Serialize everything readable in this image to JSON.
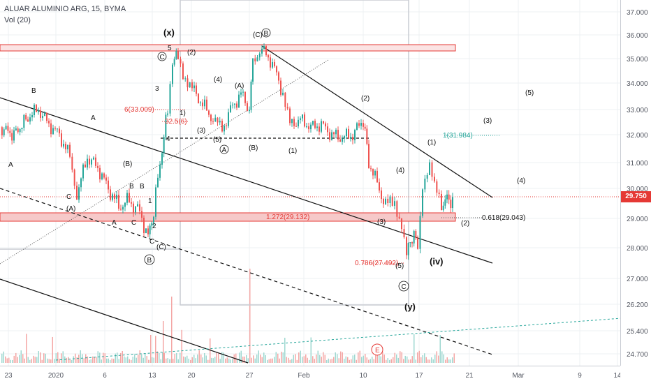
{
  "header": {
    "symbol_line": "ALUAR ALUMINIO ARG, 15, BYMA",
    "volume_line": "Vol (20)"
  },
  "price_axis": {
    "ticks": [
      "37.000",
      "36.000",
      "35.000",
      "34.000",
      "33.000",
      "32.000",
      "31.000",
      "30.000",
      "29.000",
      "28.000",
      "27.000",
      "26.200",
      "25.400",
      "24.700"
    ],
    "last_price": "29.750"
  },
  "time_axis": {
    "ticks": [
      "23",
      "2020",
      "6",
      "13",
      "20",
      "27",
      "Feb",
      "10",
      "17",
      "21",
      "Mar",
      "9",
      "14"
    ]
  },
  "colors": {
    "up": "#26a69a",
    "down": "#ef5350",
    "zone_fill": "#f8d7d7",
    "zone_stroke": "#e53935",
    "trend": "#111111",
    "teal_line": "#26a69a"
  },
  "annotations": {
    "x_label": "(x)",
    "y_label": "(y)",
    "iv_label": "(iv)",
    "cb_top": "(C)",
    "wave_labels": [
      "B",
      "A",
      "A",
      "(A)",
      "C",
      "B",
      "A",
      "C",
      "B",
      "1",
      "2",
      "C",
      "(C)",
      "(B)",
      "3",
      "5",
      "(2)",
      "1)",
      "(3)",
      "(4)",
      "(5)",
      "(A)",
      "(B)",
      "(1)",
      "(2)",
      "(3)",
      "(4)",
      "(5)",
      "(1)",
      "(2)",
      "(3)",
      "(4)",
      "(5)",
      "4",
      "E",
      "B",
      "C"
    ],
    "fib_33": "6(33.009)",
    "fib_325": "32.5(6)",
    "fib_1272": "1.272(29.132)",
    "fib_786": "0.786(27.492)",
    "fib_618": "0.618(29.043)",
    "fib_1_teal": "1(31.984)"
  },
  "chart_data": {
    "type": "candlestick",
    "title": "ALUAR ALUMINIO ARG, 15, BYMA",
    "indicator": "Vol (20)",
    "y_axis_ticks": [
      24.7,
      25.4,
      26.2,
      27.0,
      28.0,
      29.0,
      30.0,
      31.0,
      32.0,
      33.0,
      34.0,
      35.0,
      36.0,
      37.0
    ],
    "last_price": 29.75,
    "x_axis_ticks": [
      "23",
      "2020",
      "6",
      "13",
      "20",
      "27",
      "Feb",
      "10",
      "17",
      "21",
      "Mar",
      "9",
      "14"
    ],
    "approx_close_path": [
      {
        "t": "23",
        "price": 32.3
      },
      {
        "t": "2020",
        "price": 33.0
      },
      {
        "t": "6",
        "price": 31.2
      },
      {
        "t": "13",
        "price": 29.0
      },
      {
        "t": "20",
        "price": 35.0
      },
      {
        "t": "27",
        "price": 35.3
      },
      {
        "t": "Feb",
        "price": 32.2
      },
      {
        "t": "10",
        "price": 31.8
      },
      {
        "t": "17",
        "price": 28.1
      },
      {
        "t": "21",
        "price": 29.6
      }
    ],
    "fib_levels": [
      {
        "label": "6(33.009)",
        "value": 33.009
      },
      {
        "label": "32.5(6)",
        "value": 32.56
      },
      {
        "label": "1.272(29.132)",
        "value": 29.132
      },
      {
        "label": "0.786(27.492)",
        "value": 27.492
      },
      {
        "label": "0.618(29.043)",
        "value": 29.043
      },
      {
        "label": "1(31.984)",
        "value": 31.984
      }
    ],
    "zones": [
      {
        "from": 35.3,
        "to": 35.6
      },
      {
        "from": 28.95,
        "to": 29.25
      }
    ],
    "grid": true
  }
}
